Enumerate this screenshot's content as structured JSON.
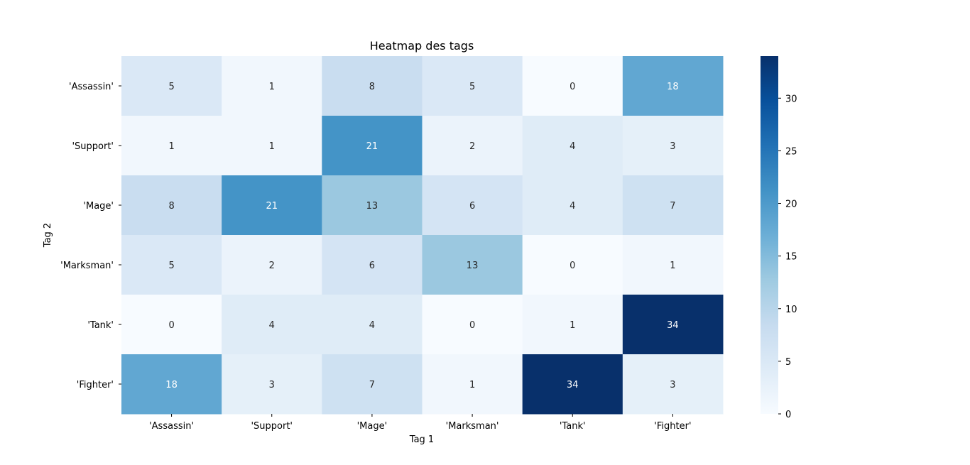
{
  "chart_data": {
    "type": "heatmap",
    "title": "Heatmap des tags",
    "xlabel": "Tag 1",
    "ylabel": "Tag 2",
    "x_categories": [
      "'Assassin'",
      "'Support'",
      "'Mage'",
      "'Marksman'",
      "'Tank'",
      "'Fighter'"
    ],
    "y_categories": [
      "'Assassin'",
      "'Support'",
      "'Mage'",
      "'Marksman'",
      "'Tank'",
      "'Fighter'"
    ],
    "values": [
      [
        5,
        1,
        8,
        5,
        0,
        18
      ],
      [
        1,
        1,
        21,
        2,
        4,
        3
      ],
      [
        8,
        21,
        13,
        6,
        4,
        7
      ],
      [
        5,
        2,
        6,
        13,
        0,
        1
      ],
      [
        0,
        4,
        4,
        0,
        1,
        34
      ],
      [
        18,
        3,
        7,
        1,
        34,
        3
      ]
    ],
    "colorbar": {
      "colormap": "Blues",
      "range": [
        0,
        34
      ],
      "ticks": [
        0,
        5,
        10,
        15,
        20,
        25,
        30
      ]
    },
    "annotations": true
  }
}
